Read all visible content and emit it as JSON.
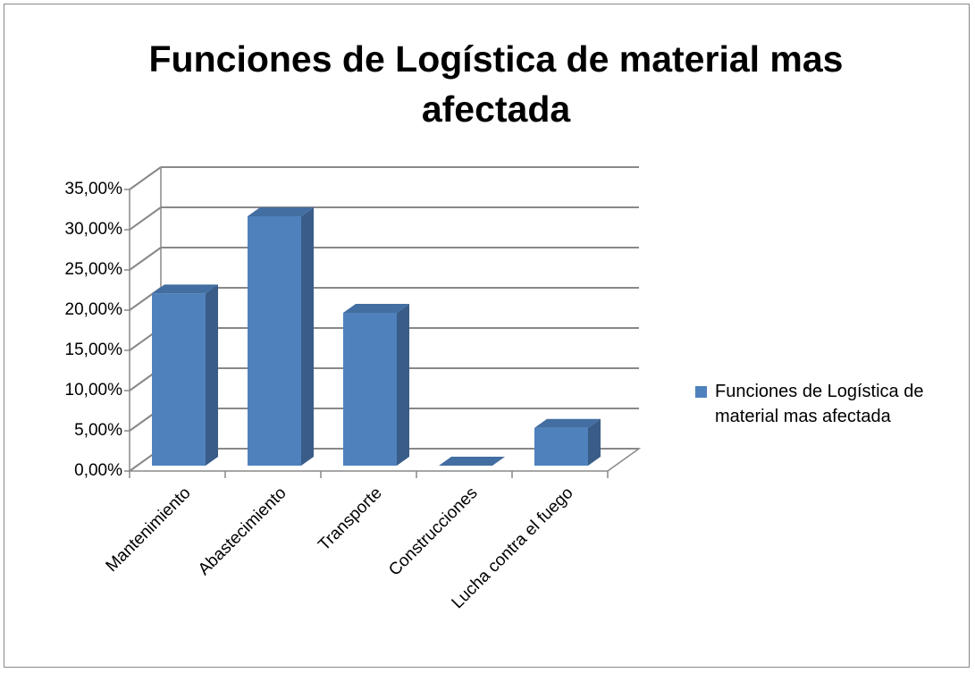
{
  "chart_data": {
    "type": "bar3d",
    "title": "Funciones de Logística de material mas afectada",
    "categories": [
      "Mantenimiento",
      "Abastecimiento",
      "Transporte",
      "Construcciones",
      "Lucha contra el fuego"
    ],
    "series": [
      {
        "name": "Funciones de Logística de material mas afectada",
        "color": "#4f81bd",
        "values": [
          21.4,
          31.0,
          19.0,
          0,
          4.7
        ]
      }
    ],
    "ylim": [
      0,
      35
    ],
    "yticks": [
      {
        "value": 0,
        "label": "0,00%"
      },
      {
        "value": 5,
        "label": "5,00%"
      },
      {
        "value": 10,
        "label": "10,00%"
      },
      {
        "value": 15,
        "label": "15,00%"
      },
      {
        "value": 20,
        "label": "20,00%"
      },
      {
        "value": 25,
        "label": "25,00%"
      },
      {
        "value": 30,
        "label": "30,00%"
      },
      {
        "value": 35,
        "label": "35,00%"
      }
    ],
    "grid": true,
    "legend": "right"
  }
}
